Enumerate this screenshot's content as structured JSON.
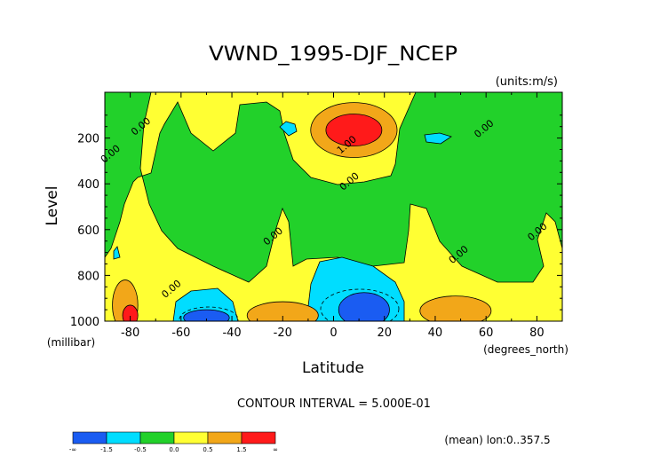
{
  "chart_data": {
    "type": "heatmap",
    "title": "VWND_1995-DJF_NCEP",
    "units_label": "(units:m/s)",
    "xlabel": "Latitude",
    "x_units_label": "(degrees_north)",
    "ylabel": "Level",
    "y_units_label": "(millibar)",
    "xlim": [
      -90,
      90
    ],
    "ylim": [
      1000,
      0
    ],
    "x_ticks": [
      -80,
      -60,
      -40,
      -20,
      0,
      20,
      40,
      60,
      80
    ],
    "x_tick_labels": [
      "-80",
      "-60",
      "-40",
      "-20",
      "0",
      "20",
      "40",
      "60",
      "80"
    ],
    "y_ticks": [
      200,
      400,
      600,
      800,
      1000
    ],
    "y_tick_labels": [
      "200",
      "400",
      "600",
      "800",
      "1000"
    ],
    "contour_interval_label": "CONTOUR INTERVAL = 5.000E-01",
    "mean_note": "(mean) lon:0..357.5",
    "contour_labels": [
      {
        "text": "0.00",
        "lat": -75,
        "lev": 160
      },
      {
        "text": "0.00",
        "lat": -87,
        "lev": 280
      },
      {
        "text": "0.00",
        "lat": -23,
        "lev": 640
      },
      {
        "text": "0.00",
        "lat": -63,
        "lev": 870
      },
      {
        "text": "1.00",
        "lat": 6,
        "lev": 240
      },
      {
        "text": "0.00",
        "lat": 7,
        "lev": 400
      },
      {
        "text": "0.00",
        "lat": 60,
        "lev": 170
      },
      {
        "text": "0.00",
        "lat": 50,
        "lev": 720
      },
      {
        "text": "0.00",
        "lat": 81,
        "lev": 620
      }
    ],
    "colorbar": {
      "colors": [
        "#1a5cf2",
        "#00ddff",
        "#22d12a",
        "#ffff33",
        "#f2a719",
        "#ff1a1a"
      ],
      "labels": [
        "-∞",
        "-1.5",
        "-0.5",
        "0.0",
        "0.5",
        "1.5",
        "∞"
      ]
    },
    "series": [
      {
        "value": -1,
        "color": "#1a5cf2",
        "regions": [
          {
            "lat": -50,
            "lev": 985,
            "rlat": 9,
            "rlev": 35
          },
          {
            "lat": 12,
            "lev": 950,
            "rlat": 10,
            "rlev": 75
          }
        ]
      },
      {
        "value": 1,
        "color": "#f2a719",
        "regions": [
          {
            "lat": 8,
            "lev": 165,
            "rlat": 17,
            "rlev": 120
          },
          {
            "lat": -20,
            "lev": 975,
            "rlat": 14,
            "rlev": 60
          },
          {
            "lat": 48,
            "lev": 955,
            "rlat": 14,
            "rlev": 65
          },
          {
            "lat": -82,
            "lev": 930,
            "rlat": 5,
            "rlev": 110
          }
        ]
      },
      {
        "value": 1.5,
        "color": "#ff1a1a",
        "regions": [
          {
            "lat": 8,
            "lev": 165,
            "rlat": 11,
            "rlev": 70
          },
          {
            "lat": -80,
            "lev": 975,
            "rlat": 3,
            "rlev": 45
          }
        ]
      }
    ]
  }
}
